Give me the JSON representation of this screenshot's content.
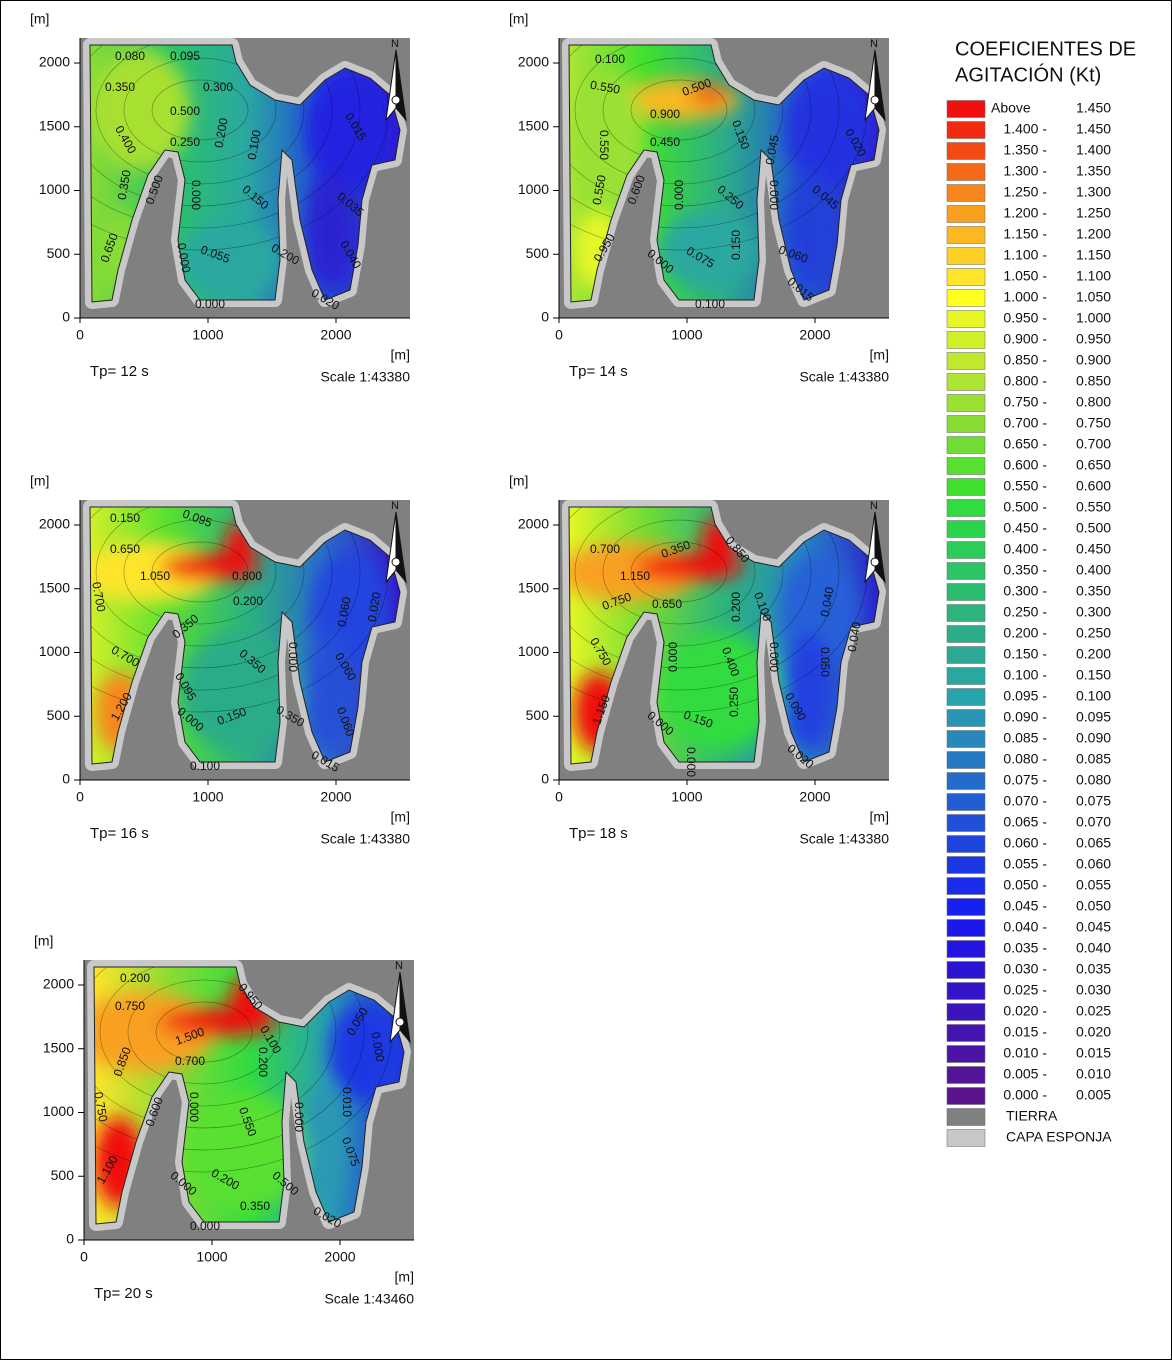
{
  "panels": [
    {
      "y_axis_label": "[m]",
      "x_axis_label": "[m]",
      "xlim": [
        0,
        2578
      ],
      "ylim": [
        0,
        2196
      ],
      "xticks": [
        0,
        1000,
        2000
      ],
      "yticks": [
        0,
        500,
        1000,
        1500,
        2000
      ],
      "period": "Tp= 12 s",
      "scale": "Scale 1:43380",
      "north": "N",
      "contour_labels": [
        "0.080",
        "0.095",
        "0.350",
        "0.300",
        "0.500",
        "0.250",
        "0.200",
        "0.100",
        "0.400",
        "0.350",
        "0.500",
        "0.650",
        "0.000",
        "0.150",
        "0.055",
        "0.200",
        "0.000",
        "0.015",
        "0.035",
        "0.040",
        "0.020",
        "0.000"
      ]
    },
    {
      "y_axis_label": "[m]",
      "x_axis_label": "[m]",
      "xlim": [
        0,
        2578
      ],
      "ylim": [
        0,
        2196
      ],
      "xticks": [
        0,
        1000,
        2000
      ],
      "yticks": [
        0,
        500,
        1000,
        1500,
        2000
      ],
      "period": "Tp= 14 s",
      "scale": "Scale 1:43380",
      "north": "N",
      "contour_labels": [
        "0.100",
        "0.550",
        "0.500",
        "0.900",
        "0.450",
        "0.150",
        "0.550",
        "0.045",
        "0.020",
        "0.550",
        "0.600",
        "0.000",
        "0.250",
        "0.000",
        "0.045",
        "0.950",
        "0.000",
        "0.075",
        "0.150",
        "0.060",
        "0.015",
        "0.100"
      ]
    },
    {
      "y_axis_label": "[m]",
      "x_axis_label": "[m]",
      "xlim": [
        0,
        2578
      ],
      "ylim": [
        0,
        2196
      ],
      "xticks": [
        0,
        1000,
        2000
      ],
      "yticks": [
        0,
        500,
        1000,
        1500,
        2000
      ],
      "period": "Tp= 16 s",
      "scale": "Scale 1:43380",
      "north": "N",
      "contour_labels": [
        "0.150",
        "0.095",
        "0.650",
        "1.050",
        "0.800",
        "0.200",
        "0.700",
        "0.350",
        "0.700",
        "0.000",
        "0.350",
        "0.060",
        "0.020",
        "0.060",
        "0.095",
        "1.200",
        "0.000",
        "0.150",
        "0.350",
        "0.060",
        "0.015",
        "0.100"
      ]
    },
    {
      "y_axis_label": "[m]",
      "x_axis_label": "[m]",
      "xlim": [
        0,
        2578
      ],
      "ylim": [
        0,
        2196
      ],
      "xticks": [
        0,
        1000,
        2000
      ],
      "yticks": [
        0,
        500,
        1000,
        1500,
        2000
      ],
      "period": "Tp= 18 s",
      "scale": "Scale 1:43380",
      "north": "N",
      "contour_labels": [
        "0.700",
        "0.350",
        "0.850",
        "1.150",
        "0.750",
        "0.650",
        "0.200",
        "0.100",
        "0.040",
        "0.750",
        "0.000",
        "0.400",
        "0.000",
        "0.050",
        "0.040",
        "1.150",
        "0.000",
        "0.150",
        "0.250",
        "0.090",
        "0.020",
        "0.000"
      ]
    },
    {
      "y_axis_label": "[m]",
      "x_axis_label": "[m]",
      "xlim": [
        0,
        2578
      ],
      "ylim": [
        0,
        2196
      ],
      "xticks": [
        0,
        1000,
        2000
      ],
      "yticks": [
        0,
        500,
        1000,
        1500,
        2000
      ],
      "period": "Tp= 20 s",
      "scale": "Scale 1:43460",
      "north": "N",
      "contour_labels": [
        "0.200",
        "0.750",
        "0.950",
        "1.500",
        "0.200",
        "0.100",
        "0.050",
        "0.850",
        "0.700",
        "0.000",
        "0.750",
        "0.600",
        "0.000",
        "0.550",
        "0.000",
        "0.010",
        "0.075",
        "1.100",
        "0.000",
        "0.200",
        "0.500",
        "0.350",
        "0.020",
        "0.000"
      ]
    }
  ],
  "legend": {
    "title": [
      "COEFICIENTES DE",
      "AGITACIÓN (Kt)"
    ],
    "entries": [
      {
        "low": "Above",
        "high": "1.450",
        "color": "#f01010"
      },
      {
        "low": "1.400 -",
        "high": "1.450",
        "color": "#f22a10"
      },
      {
        "low": "1.350 -",
        "high": "1.400",
        "color": "#f44a14"
      },
      {
        "low": "1.300 -",
        "high": "1.350",
        "color": "#f56a18"
      },
      {
        "low": "1.250 -",
        "high": "1.300",
        "color": "#f7861c"
      },
      {
        "low": "1.200 -",
        "high": "1.250",
        "color": "#f9a020"
      },
      {
        "low": "1.150 -",
        "high": "1.200",
        "color": "#fbb823"
      },
      {
        "low": "1.100 -",
        "high": "1.150",
        "color": "#fdd026"
      },
      {
        "low": "1.050 -",
        "high": "1.100",
        "color": "#fee52a"
      },
      {
        "low": "1.000 -",
        "high": "1.050",
        "color": "#ffff20"
      },
      {
        "low": "0.950 -",
        "high": "1.000",
        "color": "#e6f725"
      },
      {
        "low": "0.900 -",
        "high": "0.950",
        "color": "#d2f02a"
      },
      {
        "low": "0.850 -",
        "high": "0.900",
        "color": "#bfe82f"
      },
      {
        "low": "0.800 -",
        "high": "0.850",
        "color": "#aee434"
      },
      {
        "low": "0.750 -",
        "high": "0.800",
        "color": "#9be034"
      },
      {
        "low": "0.700 -",
        "high": "0.750",
        "color": "#88dc34"
      },
      {
        "low": "0.650 -",
        "high": "0.700",
        "color": "#70dc34"
      },
      {
        "low": "0.600 -",
        "high": "0.650",
        "color": "#58e030"
      },
      {
        "low": "0.550 -",
        "high": "0.600",
        "color": "#40e030"
      },
      {
        "low": "0.500 -",
        "high": "0.550",
        "color": "#30dc40"
      },
      {
        "low": "0.450 -",
        "high": "0.500",
        "color": "#2cd44c"
      },
      {
        "low": "0.400 -",
        "high": "0.450",
        "color": "#2ccc58"
      },
      {
        "low": "0.350 -",
        "high": "0.400",
        "color": "#2cc464"
      },
      {
        "low": "0.300 -",
        "high": "0.350",
        "color": "#2cbc70"
      },
      {
        "low": "0.250 -",
        "high": "0.300",
        "color": "#2cb47c"
      },
      {
        "low": "0.200 -",
        "high": "0.250",
        "color": "#2cac88"
      },
      {
        "low": "0.150 -",
        "high": "0.200",
        "color": "#2ca894"
      },
      {
        "low": "0.100 -",
        "high": "0.150",
        "color": "#2aa8a0"
      },
      {
        "low": "0.095 -",
        "high": "0.100",
        "color": "#28a4ac"
      },
      {
        "low": "0.090 -",
        "high": "0.095",
        "color": "#2896b4"
      },
      {
        "low": "0.085 -",
        "high": "0.090",
        "color": "#2888bc"
      },
      {
        "low": "0.080 -",
        "high": "0.085",
        "color": "#267ac4"
      },
      {
        "low": "0.075 -",
        "high": "0.080",
        "color": "#246ccc"
      },
      {
        "low": "0.070 -",
        "high": "0.075",
        "color": "#225ed2"
      },
      {
        "low": "0.065 -",
        "high": "0.070",
        "color": "#2050d8"
      },
      {
        "low": "0.060 -",
        "high": "0.065",
        "color": "#1e44de"
      },
      {
        "low": "0.055 -",
        "high": "0.060",
        "color": "#1c38e4"
      },
      {
        "low": "0.050 -",
        "high": "0.055",
        "color": "#1a2cea"
      },
      {
        "low": "0.045 -",
        "high": "0.050",
        "color": "#1820f0"
      },
      {
        "low": "0.040 -",
        "high": "0.045",
        "color": "#1c18ec"
      },
      {
        "low": "0.035 -",
        "high": "0.040",
        "color": "#2414e0"
      },
      {
        "low": "0.030 -",
        "high": "0.035",
        "color": "#2c14d4"
      },
      {
        "low": "0.025 -",
        "high": "0.030",
        "color": "#3414c8"
      },
      {
        "low": "0.020 -",
        "high": "0.025",
        "color": "#3c14bc"
      },
      {
        "low": "0.015 -",
        "high": "0.020",
        "color": "#4414b0"
      },
      {
        "low": "0.010 -",
        "high": "0.015",
        "color": "#4c14a4"
      },
      {
        "low": "0.005 -",
        "high": "0.010",
        "color": "#541498"
      },
      {
        "low": "0.000 -",
        "high": "0.005",
        "color": "#5c148c"
      }
    ],
    "land": {
      "label": "TIERRA",
      "color": "#808080"
    },
    "sponge": {
      "label": "CAPA ESPONJA",
      "color": "#c8c8c8"
    }
  }
}
